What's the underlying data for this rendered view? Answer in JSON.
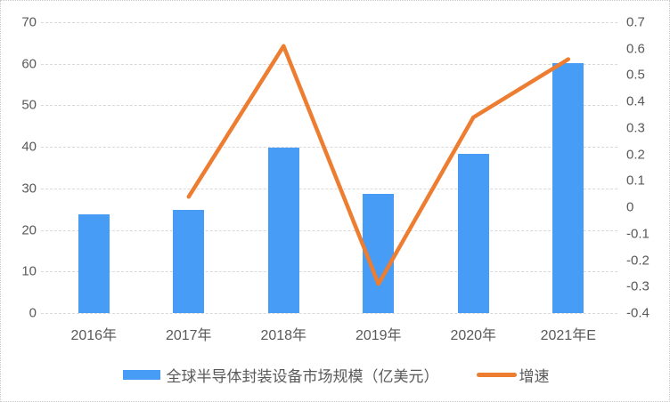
{
  "chart_data": {
    "type": "bar+line",
    "title": "",
    "categories": [
      "2016年",
      "2017年",
      "2018年",
      "2019年",
      "2020年",
      "2021年E"
    ],
    "series": [
      {
        "name": "全球半导体封装设备市场规模（亿美元）",
        "type": "bar",
        "axis": "left",
        "values": [
          23.8,
          24.8,
          39.9,
          28.6,
          38.4,
          60.1
        ]
      },
      {
        "name": "增速",
        "type": "line",
        "axis": "right",
        "values": [
          null,
          0.04,
          0.61,
          -0.29,
          0.34,
          0.56
        ]
      }
    ],
    "left_axis": {
      "min": 0,
      "max": 70,
      "step": 10,
      "tick_labels": [
        "0",
        "10",
        "20",
        "30",
        "40",
        "50",
        "60",
        "70"
      ]
    },
    "right_axis": {
      "min": -0.4,
      "max": 0.7,
      "step": 0.1,
      "tick_labels": [
        "0.7",
        "0.6",
        "0.5",
        "0.4",
        "0.3",
        "0.2",
        "0.1",
        "0",
        "-0.1",
        "-0.2",
        "-0.3",
        "-0.4"
      ]
    },
    "grid": true,
    "legend_position": "bottom"
  },
  "legend": {
    "bar_label": "全球半导体封装设备市场规模（亿美元）",
    "line_label": "增速"
  },
  "colors": {
    "bar": "#479CF5",
    "line": "#ED7D31",
    "grid": "#D9D9D9",
    "axis_text": "#595959",
    "background": "#FFFFFF",
    "border": "#C9C9C9"
  }
}
